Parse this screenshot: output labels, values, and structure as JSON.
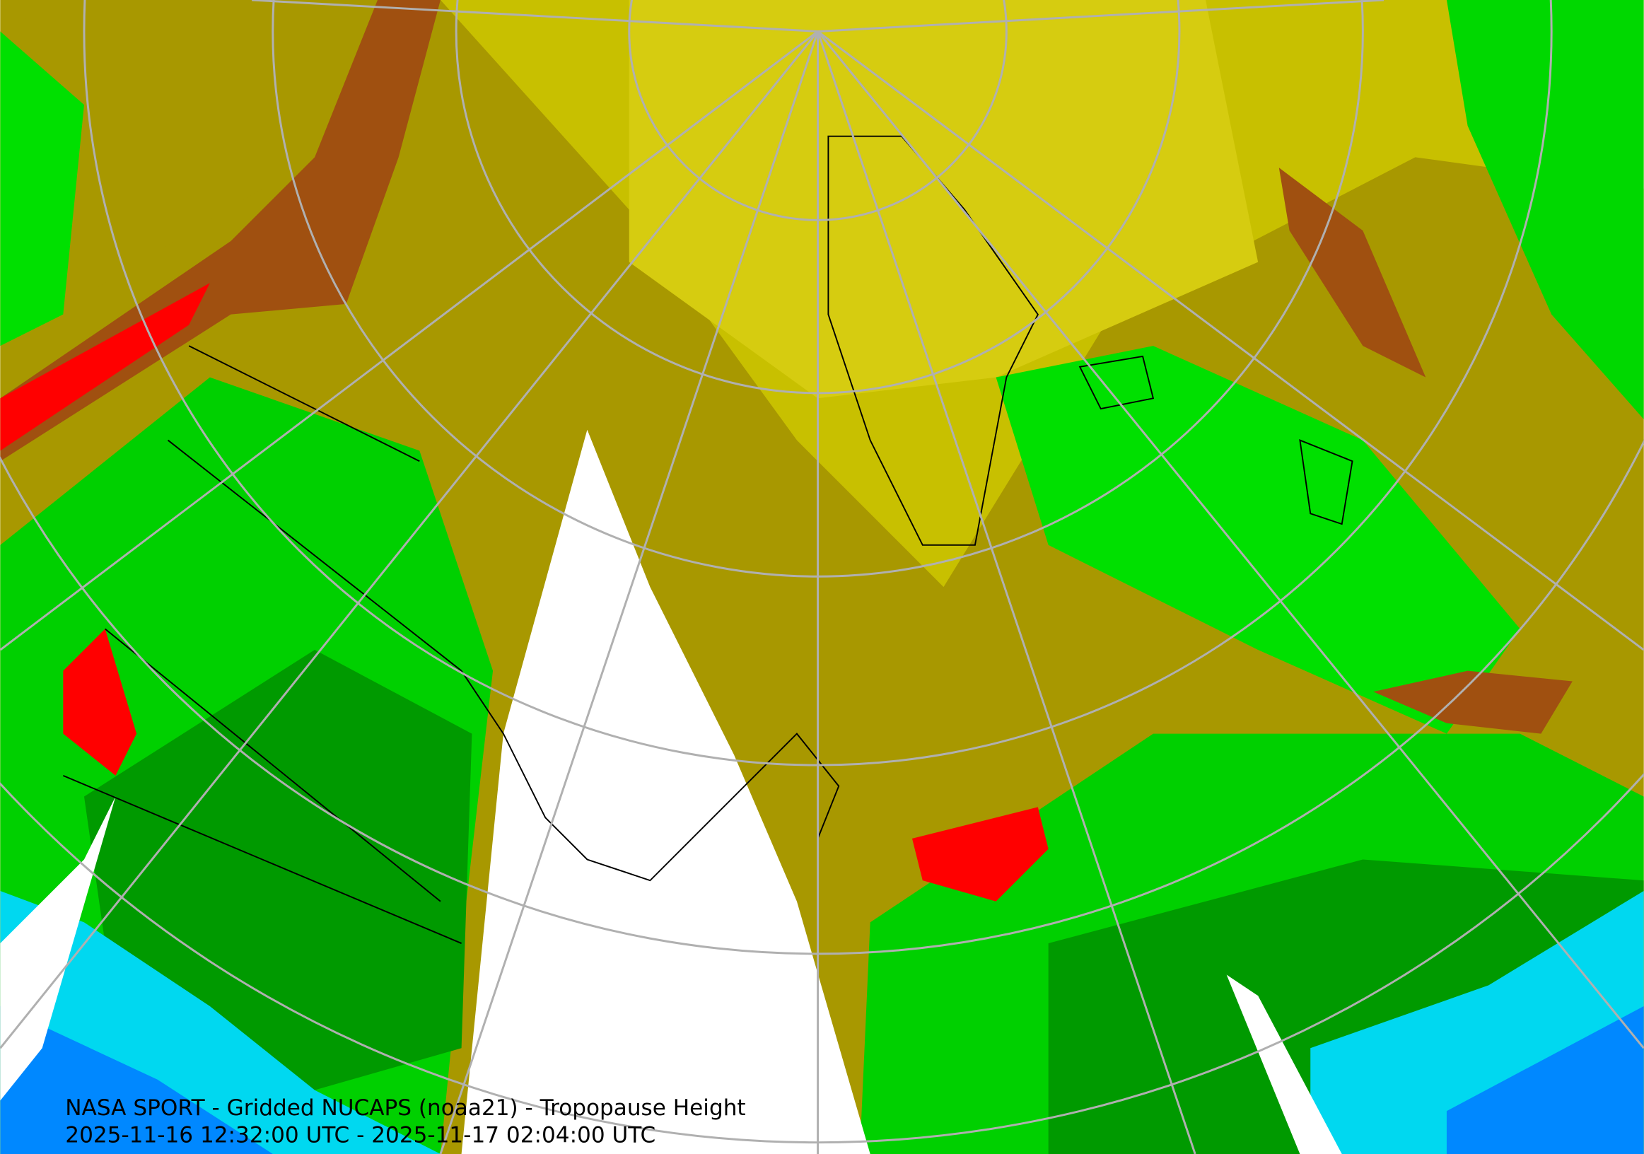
{
  "caption": {
    "line1": "NASA SPORT - Gridded NUCAPS (noaa21) - Tropopause Height",
    "line2": "2025-11-16 12:32:00 UTC - 2025-11-17 02:04:00 UTC"
  }
}
